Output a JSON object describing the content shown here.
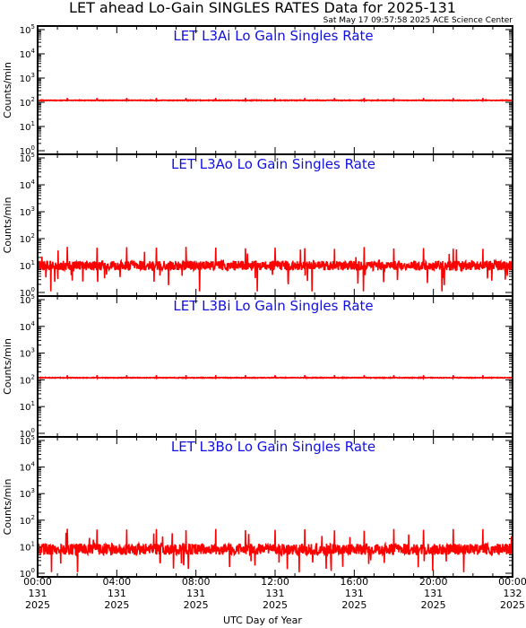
{
  "title": "LET ahead Lo-Gain SINGLES RATES Data for 2025-131",
  "timestamp": "Sat May 17 09:57:58 2025 ACE Science Center",
  "xlabel": "UTC Day of Year",
  "colors": {
    "series": "#ff0000",
    "panel_title": "#1010e0",
    "axis": "#000000"
  },
  "x_ticks": [
    {
      "time": "00:00",
      "day": "131",
      "year": "2025"
    },
    {
      "time": "04:00",
      "day": "131",
      "year": "2025"
    },
    {
      "time": "08:00",
      "day": "131",
      "year": "2025"
    },
    {
      "time": "12:00",
      "day": "131",
      "year": "2025"
    },
    {
      "time": "16:00",
      "day": "131",
      "year": "2025"
    },
    {
      "time": "20:00",
      "day": "131",
      "year": "2025"
    },
    {
      "time": "00:00",
      "day": "132",
      "year": "2025"
    }
  ],
  "chart_data": [
    {
      "type": "line",
      "title": "LET L3Ai Lo Gain Singles Rate",
      "ylabel": "Counts/min",
      "yscale": "log",
      "ylim": [
        1,
        100000
      ],
      "y_ticks": [
        "10^0",
        "10^1",
        "10^2",
        "10^3",
        "10^4",
        "10^5"
      ],
      "xlim_hours": [
        0,
        24
      ],
      "series": [
        {
          "baseline": 120,
          "spike_max": 150,
          "periodic_spike_hours": 1.5
        }
      ]
    },
    {
      "type": "line",
      "title": "LET L3Ao Lo Gain Singles Rate",
      "ylabel": "Counts/min",
      "yscale": "log",
      "ylim": [
        1,
        100000
      ],
      "y_ticks": [
        "10^0",
        "10^1",
        "10^2",
        "10^3",
        "10^4",
        "10^5"
      ],
      "xlim_hours": [
        0,
        24
      ],
      "series": [
        {
          "baseline": 10,
          "noise_range": [
            3,
            20
          ],
          "spike_max": 50,
          "periodic_spike_hours": 1.5
        }
      ]
    },
    {
      "type": "line",
      "title": "LET L3Bi Lo Gain Singles Rate",
      "ylabel": "Counts/min",
      "yscale": "log",
      "ylim": [
        1,
        100000
      ],
      "y_ticks": [
        "10^0",
        "10^1",
        "10^2",
        "10^3",
        "10^4",
        "10^5"
      ],
      "xlim_hours": [
        0,
        24
      ],
      "series": [
        {
          "baseline": 120,
          "spike_max": 150,
          "periodic_spike_hours": 1.5
        }
      ]
    },
    {
      "type": "line",
      "title": "LET L3Bo Lo Gain Singles Rate",
      "ylabel": "Counts/min",
      "yscale": "log",
      "ylim": [
        1,
        100000
      ],
      "y_ticks": [
        "10^0",
        "10^1",
        "10^2",
        "10^3",
        "10^4",
        "10^5"
      ],
      "xlim_hours": [
        0,
        24
      ],
      "series": [
        {
          "baseline": 8,
          "noise_range": [
            2,
            18
          ],
          "spike_max": 50,
          "periodic_spike_hours": 1.5
        }
      ]
    }
  ]
}
